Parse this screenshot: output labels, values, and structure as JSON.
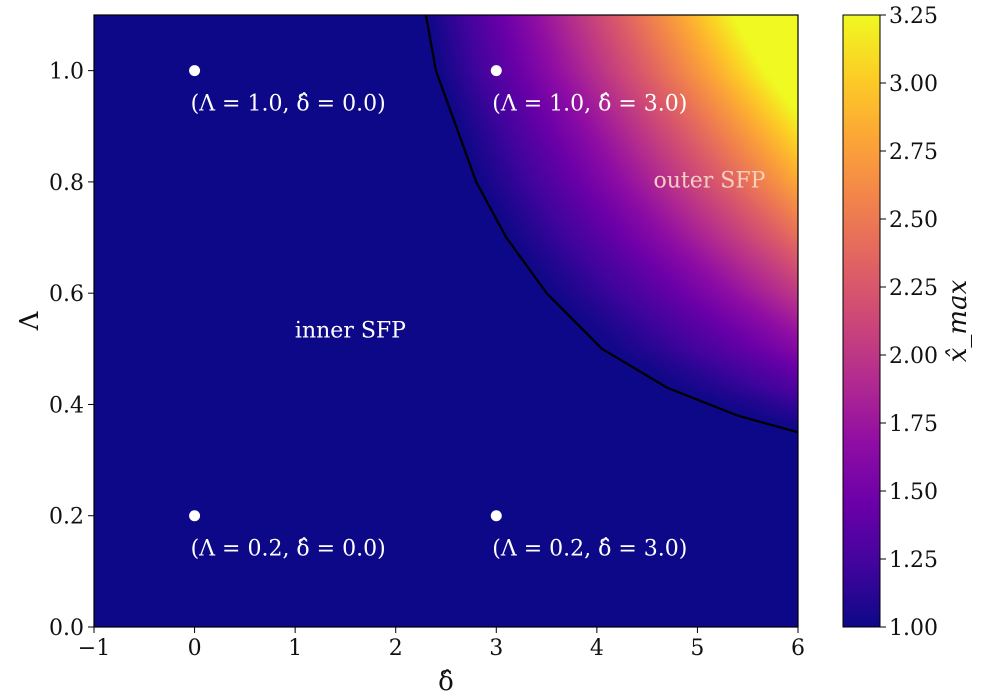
{
  "chart_data": {
    "type": "heatmap",
    "title": "",
    "xlabel": "δ̂",
    "ylabel": "Λ",
    "xlim": [
      -1,
      6
    ],
    "ylim": [
      0,
      1.1
    ],
    "x_ticks": [
      -1,
      0,
      1,
      2,
      3,
      4,
      5,
      6
    ],
    "x_tick_labels": [
      "−1",
      "0",
      "1",
      "2",
      "3",
      "4",
      "5",
      "6"
    ],
    "y_ticks": [
      0.0,
      0.2,
      0.4,
      0.6,
      0.8,
      1.0
    ],
    "y_tick_labels": [
      "0.0",
      "0.2",
      "0.4",
      "0.6",
      "0.8",
      "1.0"
    ],
    "colormap": "plasma",
    "colorbar": {
      "label": "x̂_max",
      "range": [
        1.0,
        3.25
      ],
      "ticks": [
        1.0,
        1.25,
        1.5,
        1.75,
        2.0,
        2.25,
        2.5,
        2.75,
        3.0,
        3.25
      ],
      "tick_labels": [
        "1.00",
        "1.25",
        "1.50",
        "1.75",
        "2.00",
        "2.25",
        "2.50",
        "2.75",
        "3.00",
        "3.25"
      ]
    },
    "boundary_curve": {
      "color": "#000000",
      "points": [
        [
          2.3,
          1.1
        ],
        [
          2.4,
          1.0
        ],
        [
          2.6,
          0.9
        ],
        [
          2.8,
          0.8
        ],
        [
          3.1,
          0.7
        ],
        [
          3.5,
          0.6
        ],
        [
          4.05,
          0.5
        ],
        [
          4.7,
          0.43
        ],
        [
          5.4,
          0.38
        ],
        [
          6.0,
          0.35
        ]
      ]
    },
    "marked_points": [
      {
        "x": 0.0,
        "y": 1.0,
        "label": "(Λ = 1.0, δ̂ = 0.0)"
      },
      {
        "x": 3.0,
        "y": 1.0,
        "label": "(Λ = 1.0, δ̂ = 3.0)"
      },
      {
        "x": 0.0,
        "y": 0.2,
        "label": "(Λ = 0.2, δ̂ = 0.0)"
      },
      {
        "x": 3.0,
        "y": 0.2,
        "label": "(Λ = 0.2, δ̂ = 3.0)"
      }
    ],
    "region_labels": [
      {
        "text": "inner SFP",
        "x": 1.55,
        "y": 0.52
      },
      {
        "text": "outer SFP",
        "x": 5.12,
        "y": 0.79
      }
    ],
    "colors": {
      "min_color": "#0d0887",
      "max_color": "#f0f921",
      "point_color": "#ffffff"
    }
  }
}
